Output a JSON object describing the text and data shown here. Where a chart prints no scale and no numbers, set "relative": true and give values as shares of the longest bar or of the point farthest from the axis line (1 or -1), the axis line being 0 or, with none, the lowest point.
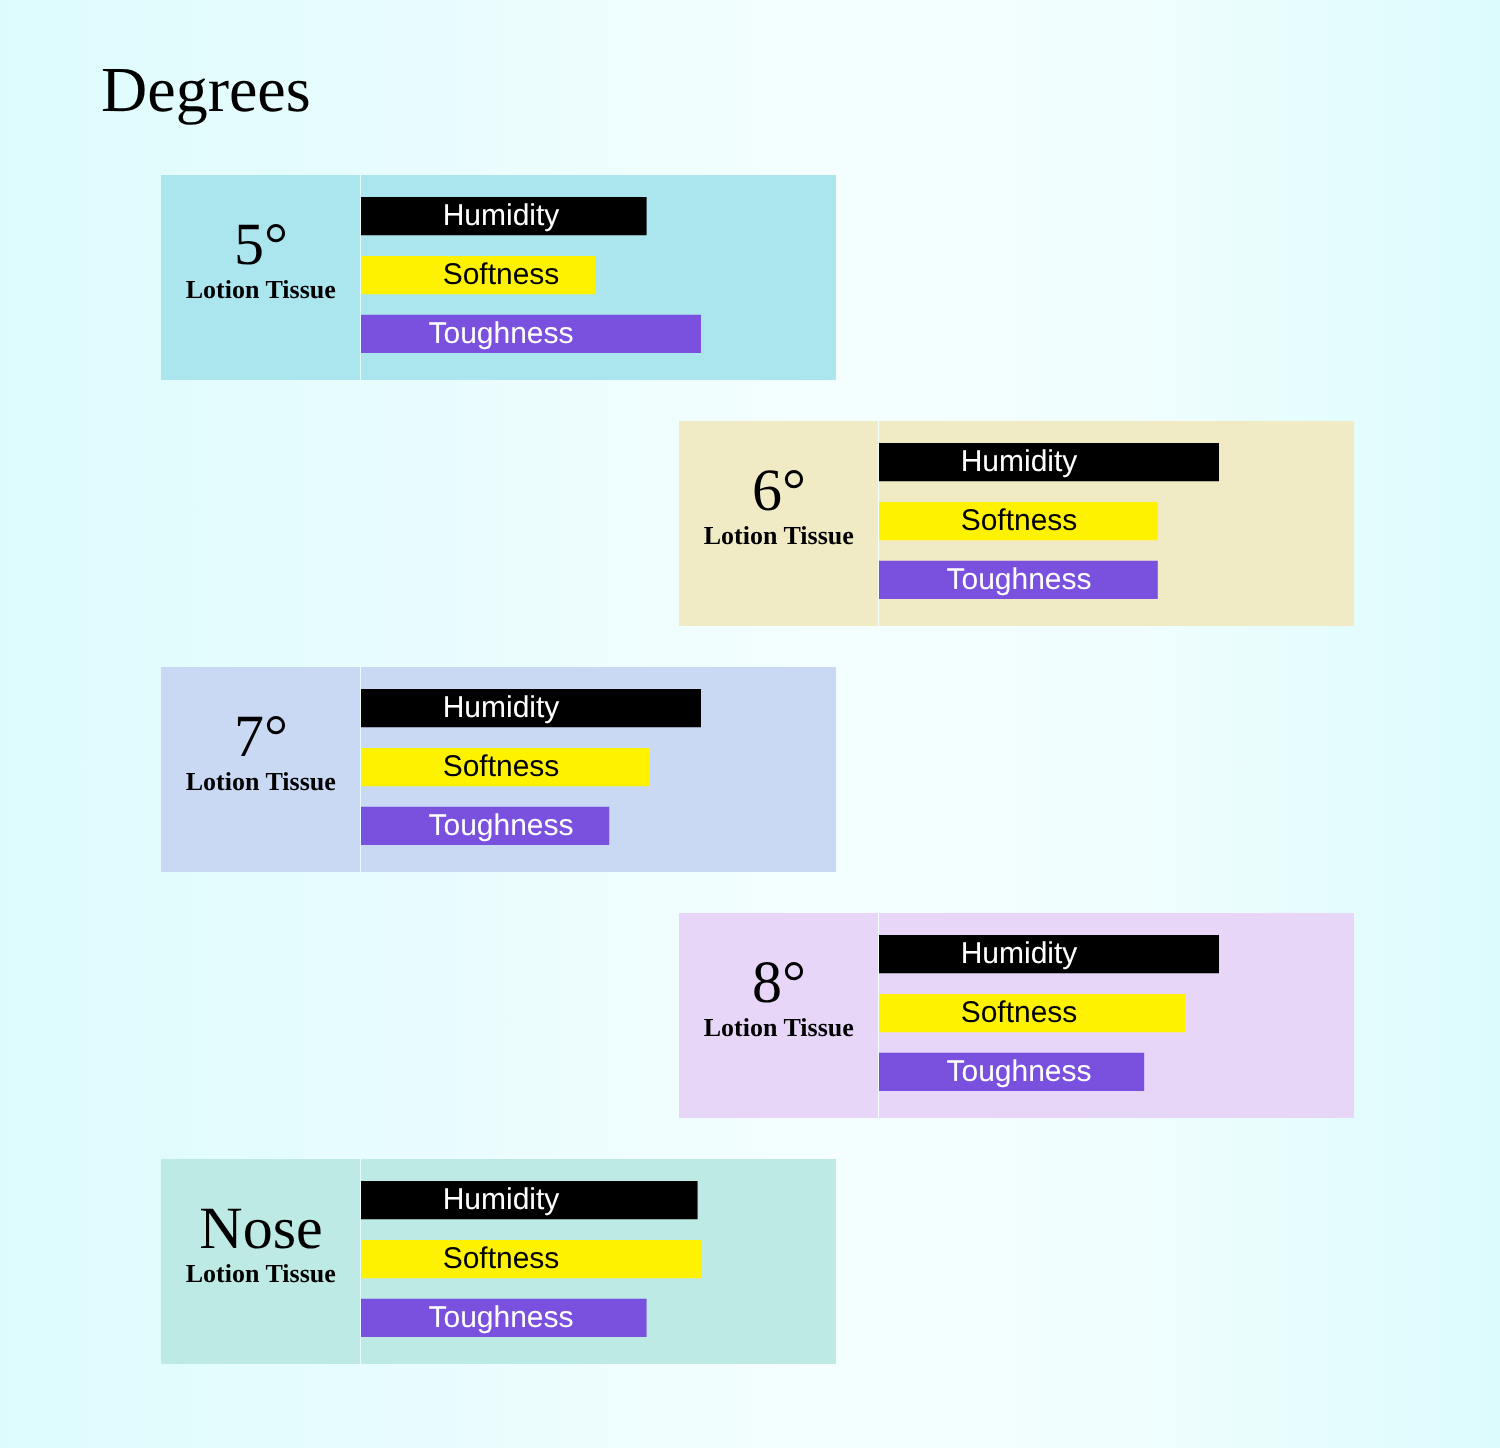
{
  "chart_data": [
    {
      "type": "bar",
      "orientation": "horizontal",
      "relative": true,
      "annotations": [
        "Degrees"
      ],
      "title": "5°",
      "subtitle": "Lotion Tissue",
      "categories": [
        "Humidity",
        "Softness",
        "Toughness"
      ],
      "values": [
        0.84,
        0.69,
        1
      ],
      "colors": [
        "#000000",
        "#fff200",
        "#7a50df"
      ]
    },
    {
      "type": "bar",
      "orientation": "horizontal",
      "relative": true,
      "title": "6°",
      "subtitle": "Lotion Tissue",
      "categories": [
        "Humidity",
        "Softness",
        "Toughness"
      ],
      "values": [
        1,
        0.82,
        0.82
      ],
      "colors": [
        "#000000",
        "#fff200",
        "#7a50df"
      ]
    },
    {
      "type": "bar",
      "orientation": "horizontal",
      "relative": true,
      "title": "7°",
      "subtitle": "Lotion Tissue",
      "categories": [
        "Humidity",
        "Softness",
        "Toughness"
      ],
      "values": [
        1,
        0.85,
        0.73
      ],
      "colors": [
        "#000000",
        "#fff200",
        "#7a50df"
      ]
    },
    {
      "type": "bar",
      "orientation": "horizontal",
      "relative": true,
      "title": "8°",
      "subtitle": "Lotion Tissue",
      "categories": [
        "Humidity",
        "Softness",
        "Toughness"
      ],
      "values": [
        1,
        0.9,
        0.78
      ],
      "colors": [
        "#000000",
        "#fff200",
        "#7a50df"
      ]
    },
    {
      "type": "bar",
      "orientation": "horizontal",
      "relative": true,
      "title": "Nose",
      "subtitle": "Lotion Tissue",
      "categories": [
        "Humidity",
        "Softness",
        "Toughness"
      ],
      "values": [
        0.99,
        1,
        0.84
      ],
      "colors": [
        "#000000",
        "#fff200",
        "#7a50df"
      ]
    }
  ]
}
